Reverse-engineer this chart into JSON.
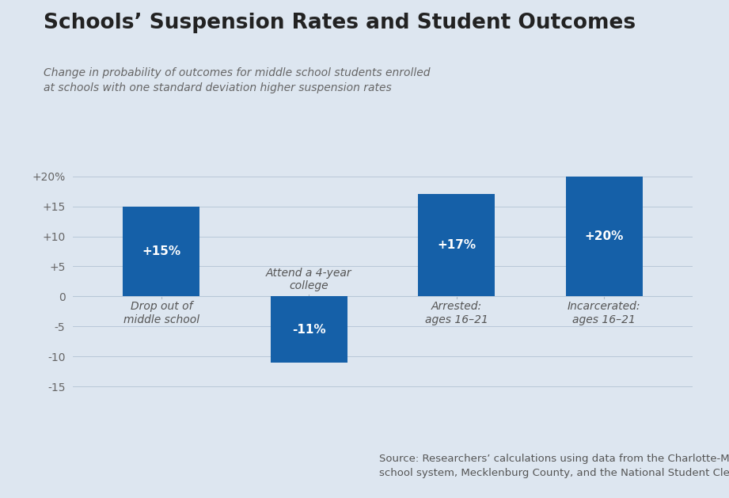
{
  "title": "Schools’ Suspension Rates and Student Outcomes",
  "subtitle_line1": "Change in probability of outcomes for middle school students enrolled",
  "subtitle_line2": "at schools with one standard deviation higher suspension rates",
  "categories": [
    "Drop out of\nmiddle school",
    "Attend a 4-year\ncollege",
    "Arrested:\nages 16–21",
    "Incarcerated:\nages 16–21"
  ],
  "values": [
    15,
    -11,
    17,
    20
  ],
  "bar_labels": [
    "+15%",
    "-11%",
    "+17%",
    "+20%"
  ],
  "bar_color": "#1560a8",
  "background_color": "#dde6f0",
  "ylim": [
    -17,
    22
  ],
  "yticks": [
    -15,
    -10,
    -5,
    0,
    5,
    10,
    15,
    20
  ],
  "ytick_labels": [
    "-15",
    "-10",
    "-5",
    "0",
    "+5",
    "+10",
    "+15",
    "+20%"
  ],
  "source_text": "Source: Researchers’ calculations using data from the Charlotte-Mecklenburg\nschool system, Mecklenburg County, and the National Student Clearinghouse",
  "title_fontsize": 19,
  "subtitle_fontsize": 10,
  "bar_label_fontsize": 11,
  "cat_label_fontsize": 10,
  "source_fontsize": 9.5,
  "bar_width": 0.52
}
